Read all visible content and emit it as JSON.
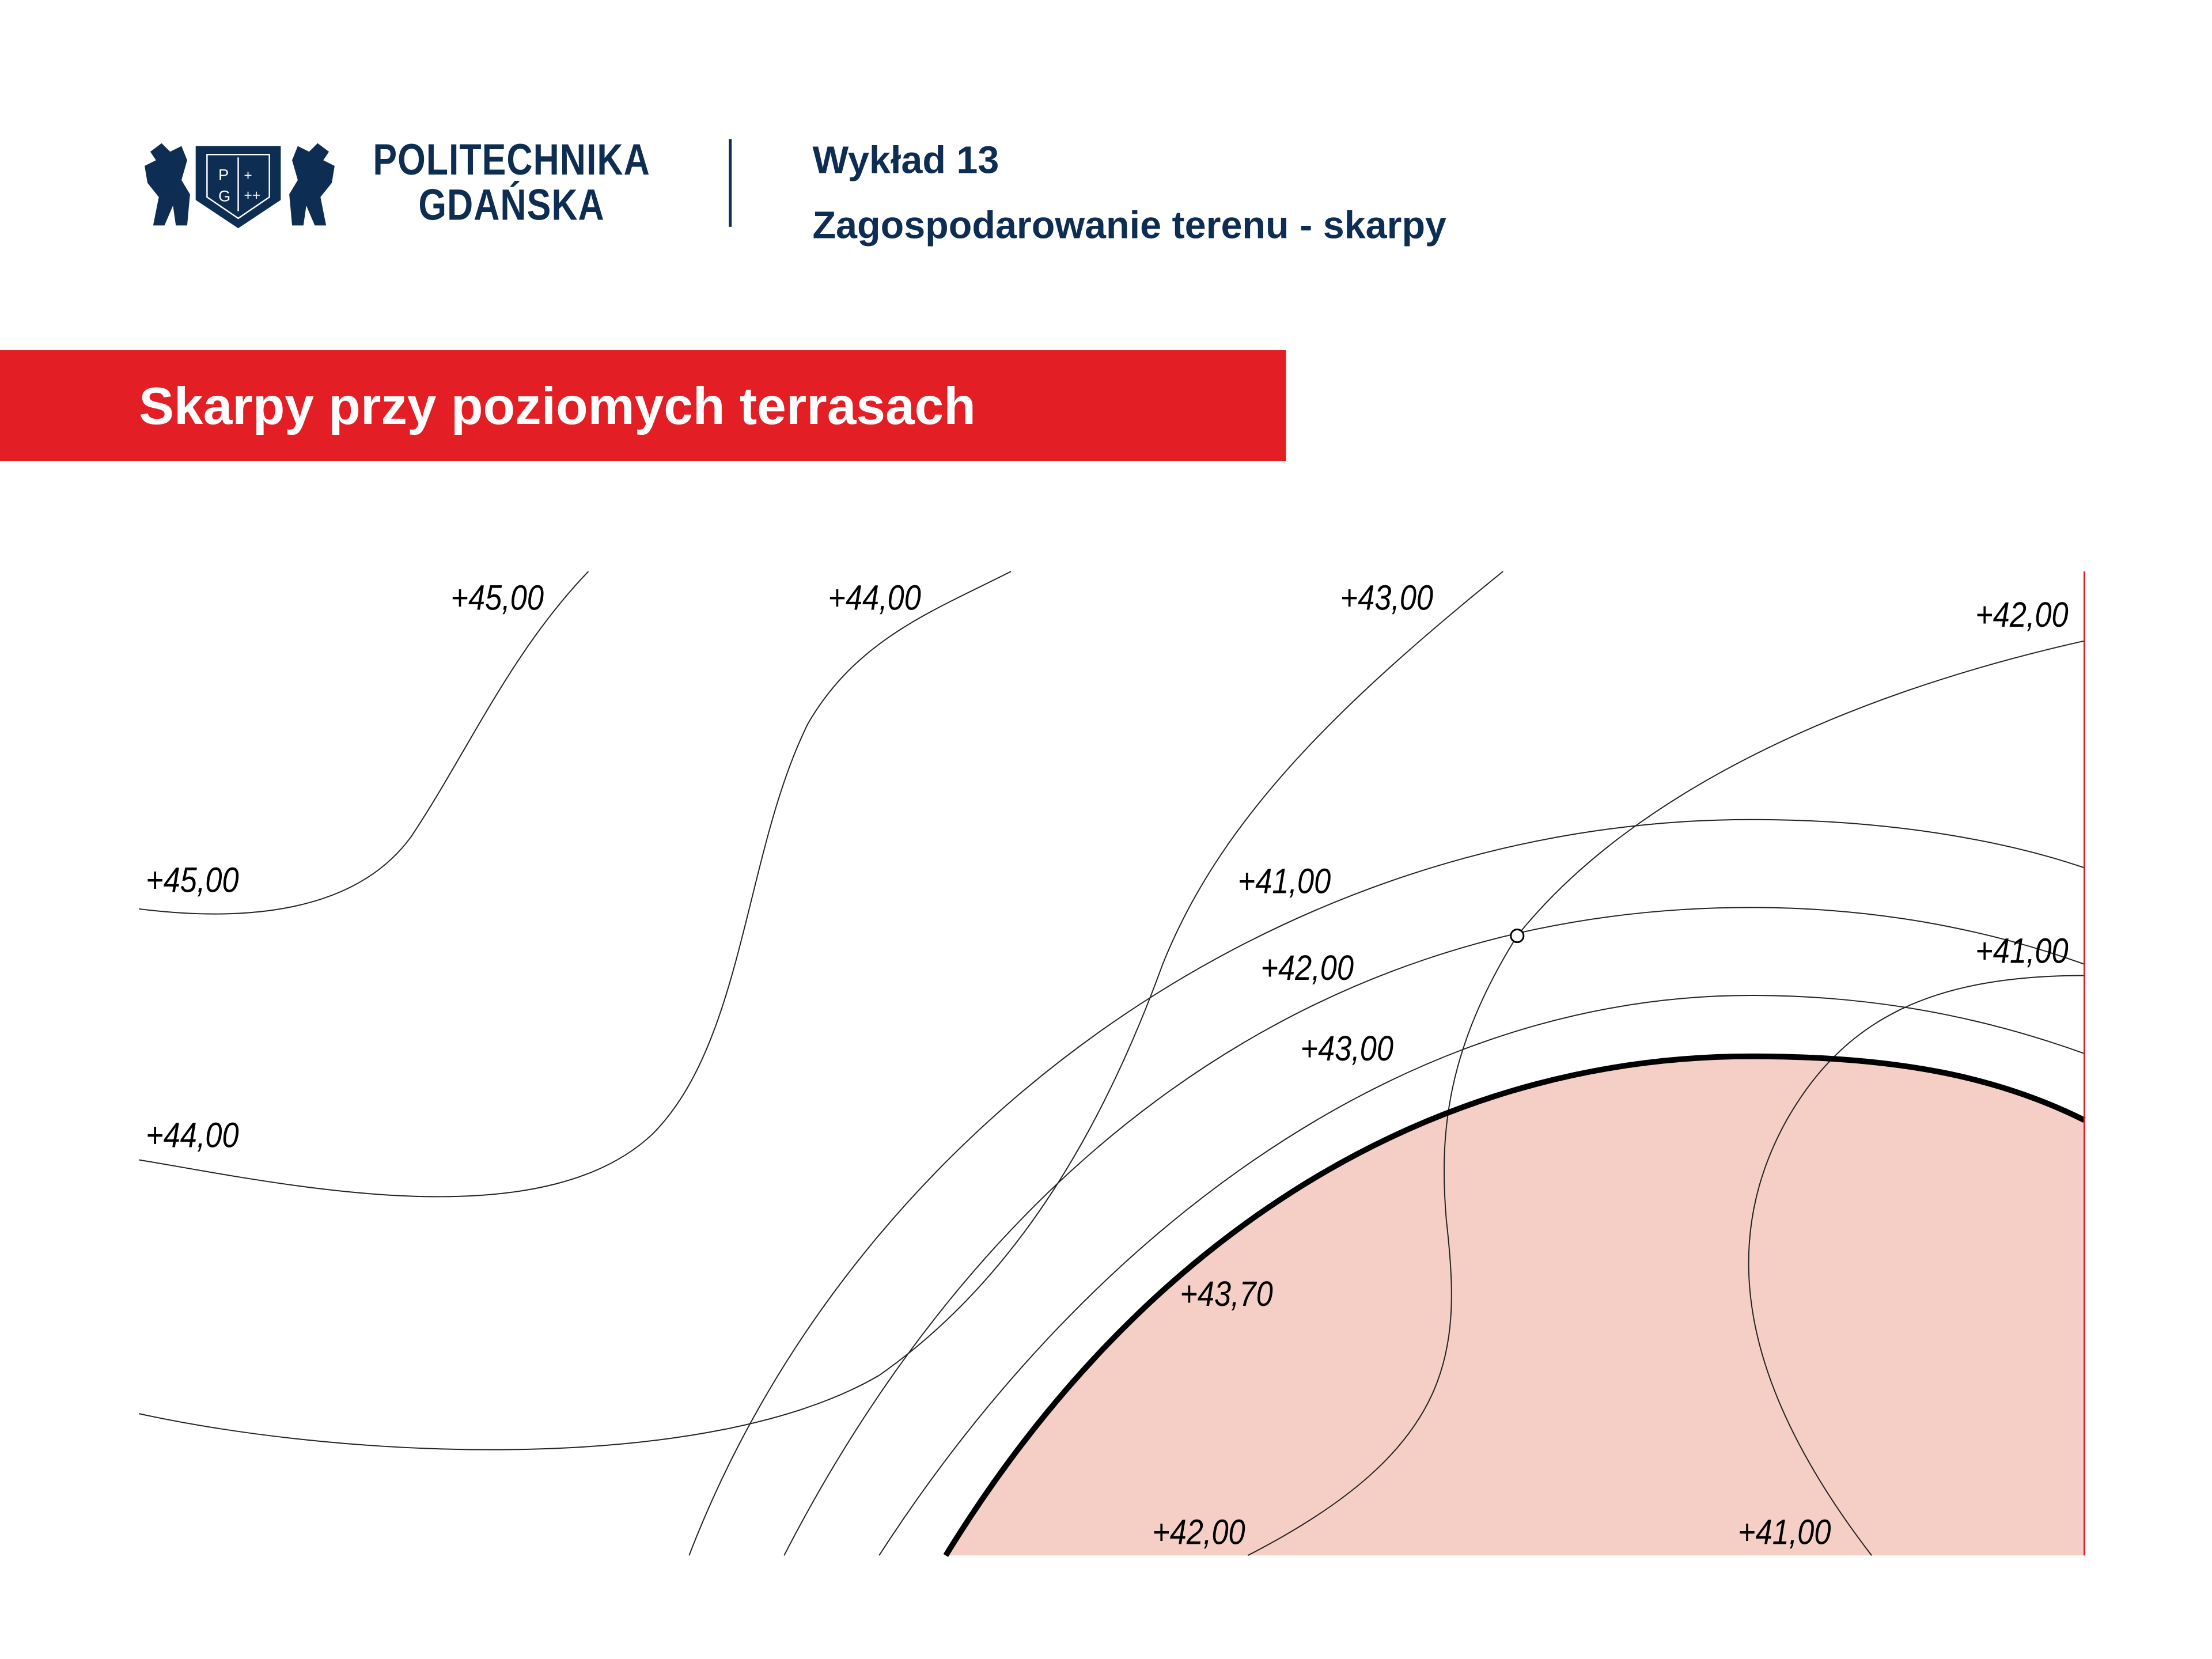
{
  "header": {
    "logo_text_line1": "POLITECHNIKA",
    "logo_text_line2": "GDAŃSKA",
    "logo_shield_letters": "P G",
    "lecture": "Wykład 13",
    "subject": "Zagospodarowanie terenu - skarpy"
  },
  "slide": {
    "title": "Skarpy przy poziomych terrasach"
  },
  "drawing": {
    "labels": {
      "l45_top": "+45,00",
      "l45_left": "+45,00",
      "l44_top": "+44,00",
      "l44_left": "+44,00",
      "l43_top": "+43,00",
      "l42_top_right": "+42,00",
      "arc41": "+41,00",
      "arc42": "+42,00",
      "arc43": "+43,00",
      "l41_right": "+41,00",
      "terrace": "+43,70",
      "l42_bottom": "+42,00",
      "l41_bottom": "+41,00"
    }
  },
  "colors": {
    "brand_navy": "#0d2d52",
    "band_red": "#e31e24",
    "terrace_fill": "#f5cfc5",
    "boundary_red": "#e31e24"
  }
}
